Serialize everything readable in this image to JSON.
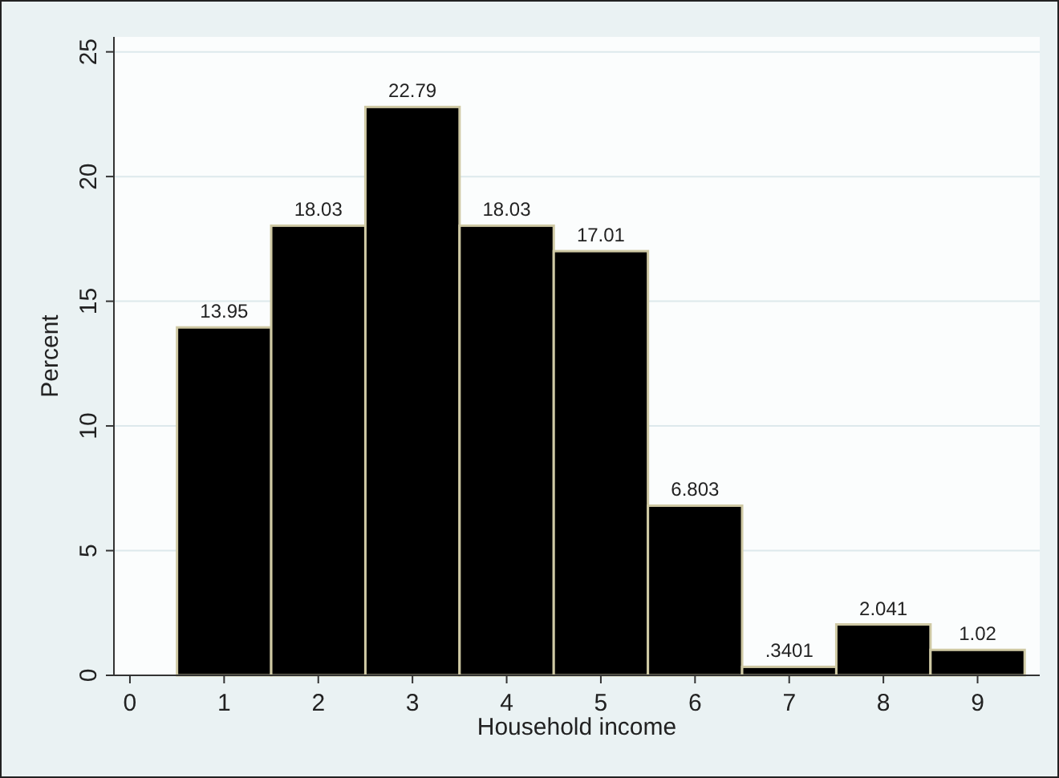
{
  "chart_data": {
    "type": "histogram",
    "xlabel": "Household income",
    "ylabel": "Percent",
    "bins": [
      0.5,
      1.5,
      2.5,
      3.5,
      4.5,
      5.5,
      6.5,
      7.5,
      8.5,
      9.5
    ],
    "values": [
      13.95,
      18.03,
      22.79,
      18.03,
      17.01,
      6.803,
      0.3401,
      2.041,
      1.02
    ],
    "value_labels": [
      "13.95",
      "18.03",
      "22.79",
      "18.03",
      "17.01",
      "6.803",
      ".3401",
      "2.041",
      "1.02"
    ],
    "color": "#000000",
    "xlim": [
      -0.17,
      9.66
    ],
    "xticks": [
      0,
      1,
      2,
      3,
      4,
      5,
      6,
      7,
      8,
      9
    ],
    "ylim": [
      0,
      25.6
    ],
    "yticks": [
      0,
      5,
      10,
      15,
      20,
      25
    ],
    "grid": "y"
  }
}
